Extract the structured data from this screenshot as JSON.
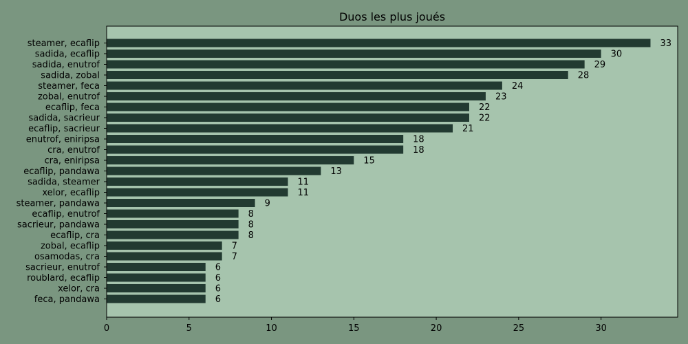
{
  "colors": {
    "figure_background": "#7a9680",
    "plot_background": "#a6c4ad",
    "bar": "#223a31",
    "axis": "#000000"
  },
  "chart_data": {
    "type": "bar",
    "orientation": "horizontal",
    "title": "Duos les plus joués",
    "xlabel": "",
    "ylabel": "",
    "xlim": [
      0,
      34.65
    ],
    "xticks": [
      0,
      5,
      10,
      15,
      20,
      25,
      30
    ],
    "grid": false,
    "categories": [
      "steamer, ecaflip",
      "sadida, ecaflip",
      "sadida, enutrof",
      "sadida, zobal",
      "steamer, feca",
      "zobal, enutrof",
      "ecaflip, feca",
      "sadida, sacrieur",
      "ecaflip, sacrieur",
      "enutrof, eniripsa",
      "cra, enutrof",
      "cra, eniripsa",
      "ecaflip, pandawa",
      "sadida, steamer",
      "xelor, ecaflip",
      "steamer, pandawa",
      "ecaflip, enutrof",
      "sacrieur, pandawa",
      "ecaflip, cra",
      "zobal, ecaflip",
      "osamodas, cra",
      "sacrieur, enutrof",
      "roublard, ecaflip",
      "xelor, cra",
      "feca, pandawa"
    ],
    "values": [
      33,
      30,
      29,
      28,
      24,
      23,
      22,
      22,
      21,
      18,
      18,
      15,
      13,
      11,
      11,
      9,
      8,
      8,
      8,
      7,
      7,
      6,
      6,
      6,
      6
    ]
  }
}
